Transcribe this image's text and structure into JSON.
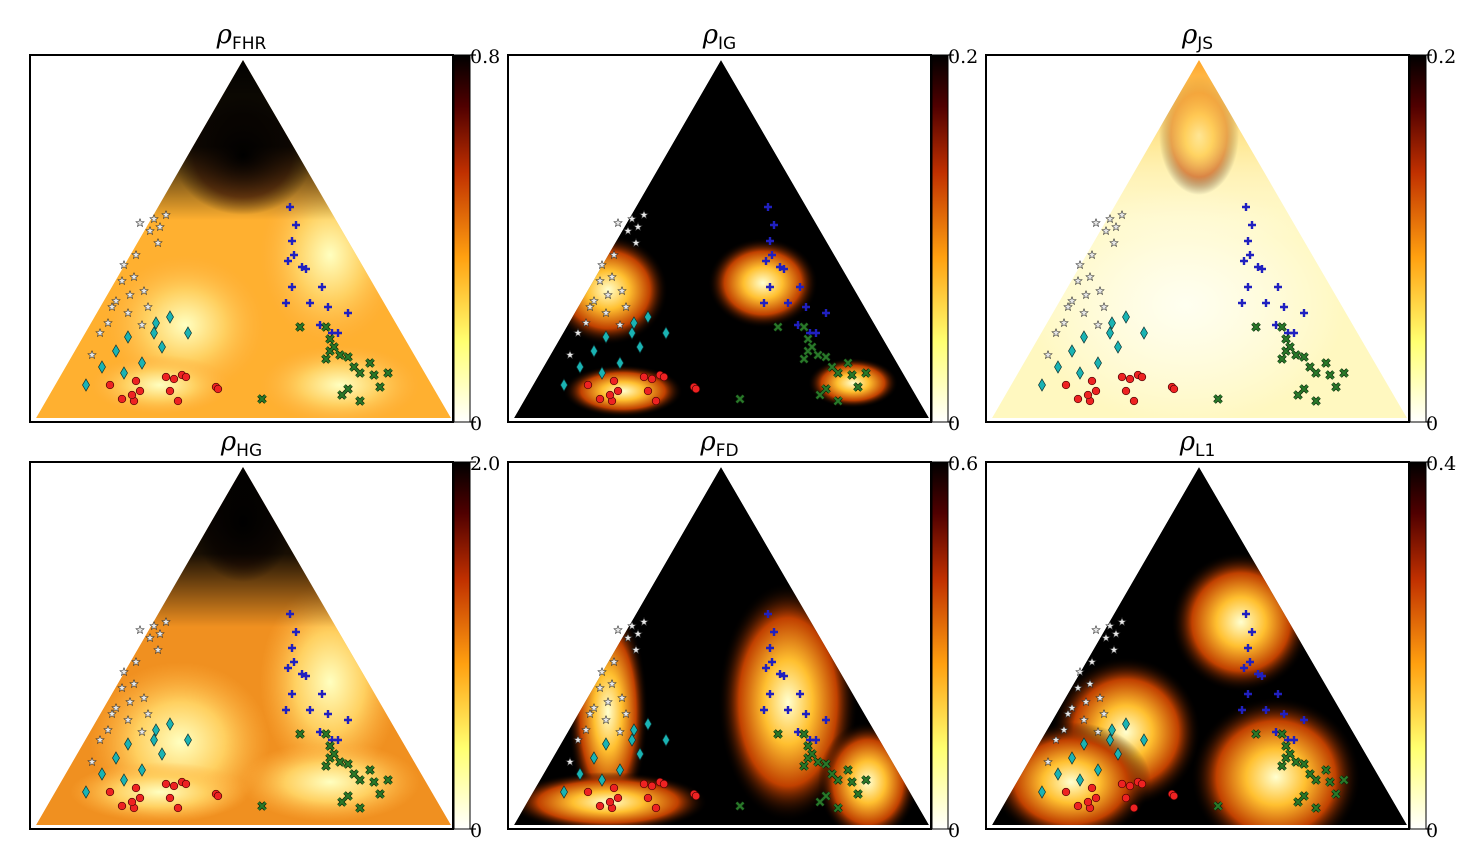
{
  "colors": {
    "colormap": "afmhot_r",
    "markers": {
      "star": "#e8e8e8",
      "diamond": "#1ab3b3",
      "plus": "#2020c0",
      "cross": "#2a7a2a",
      "circle": "#ee2222"
    }
  },
  "chart_data": [
    {
      "type": "heatmap",
      "title_symbol": "ρ",
      "title_sub": "FHR",
      "colorbar": {
        "min": "0",
        "max": "0.8"
      }
    },
    {
      "type": "heatmap",
      "title_symbol": "ρ",
      "title_sub": "IG",
      "colorbar": {
        "min": "0",
        "max": "0.2"
      }
    },
    {
      "type": "heatmap",
      "title_symbol": "ρ",
      "title_sub": "JS",
      "colorbar": {
        "min": "0",
        "max": "0.2"
      }
    },
    {
      "type": "heatmap",
      "title_symbol": "ρ",
      "title_sub": "HG",
      "colorbar": {
        "min": "0",
        "max": "2.0"
      }
    },
    {
      "type": "heatmap",
      "title_symbol": "ρ",
      "title_sub": "FD",
      "colorbar": {
        "min": "0",
        "max": "0.6"
      }
    },
    {
      "type": "heatmap",
      "title_symbol": "ρ",
      "title_sub": "L1",
      "colorbar": {
        "min": "0",
        "max": "0.4"
      }
    }
  ]
}
